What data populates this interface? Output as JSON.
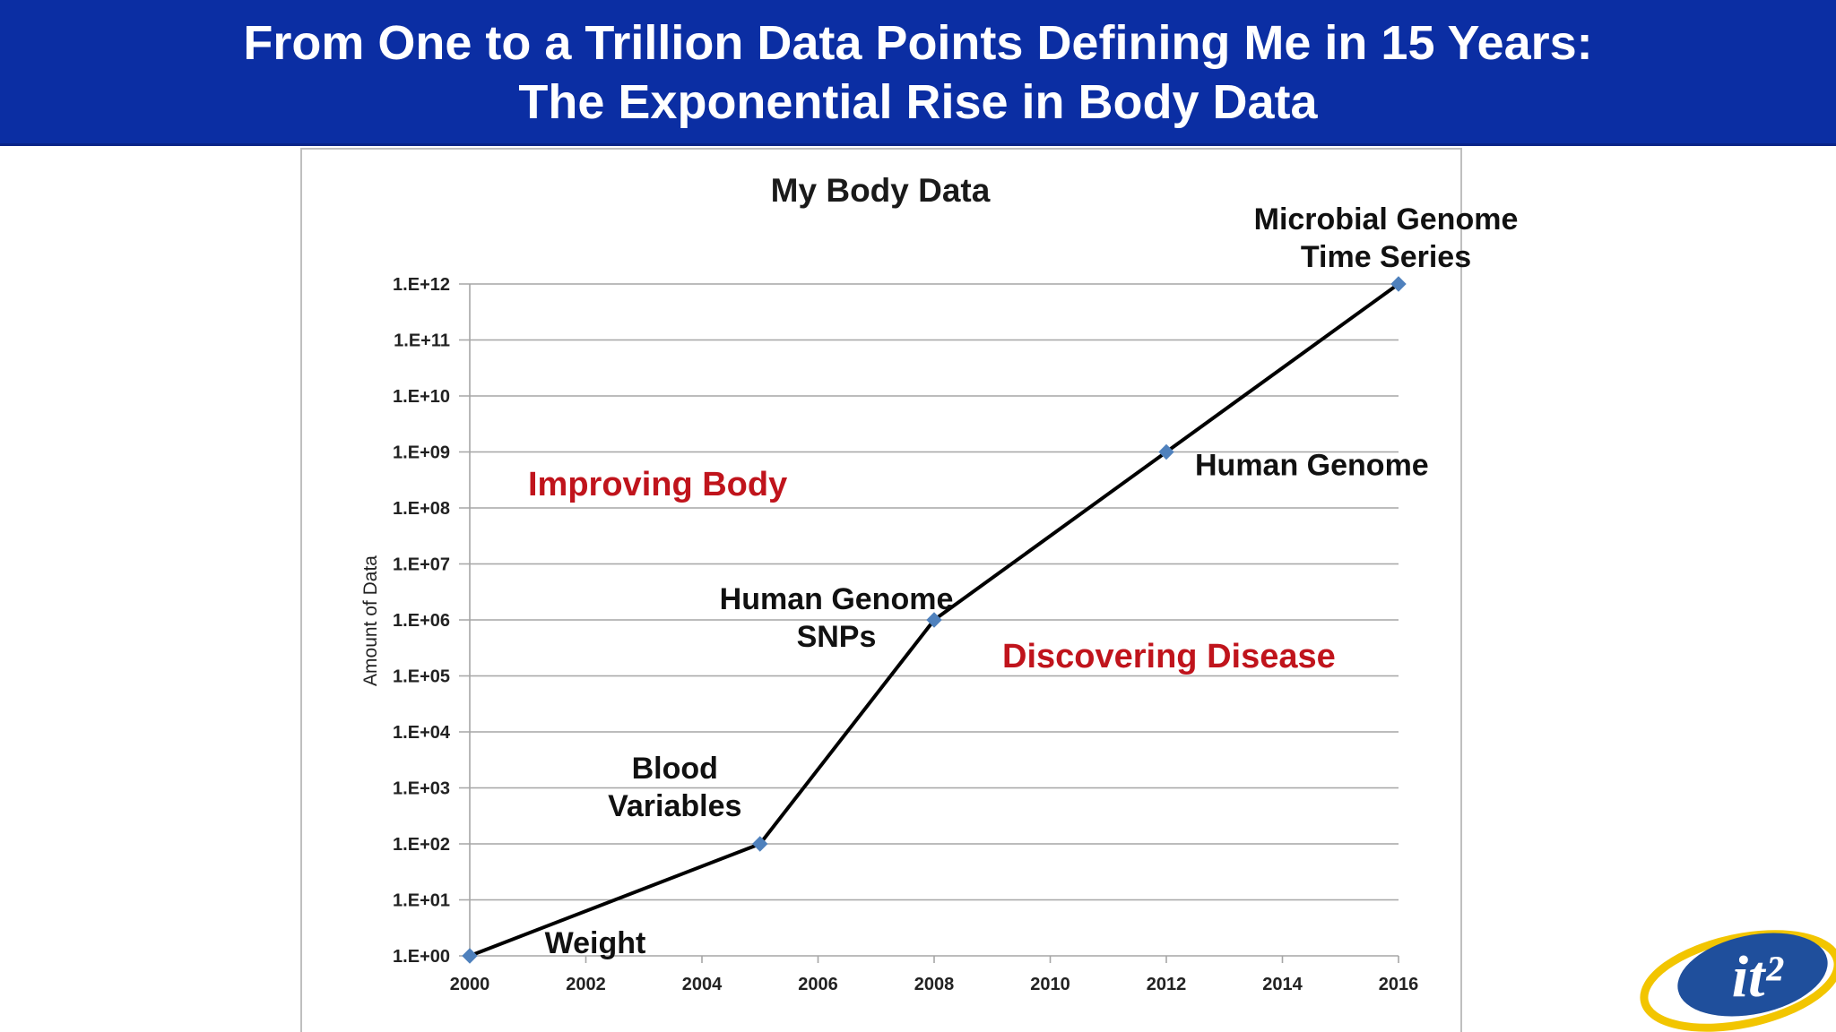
{
  "slide": {
    "title_line_1": "From One to a Trillion Data Points Defining Me in 15 Years:",
    "title_line_2": "The Exponential Rise in Body Data"
  },
  "colors": {
    "banner": "#0b2ea3",
    "line": "#000000",
    "marker": "#4f81bd",
    "gridline": "#a6a6a6",
    "red_annotation": "#c0141c"
  },
  "logo": {
    "text": "it²",
    "icon": "it2-logo"
  },
  "chart_data": {
    "type": "line",
    "title": "My Body Data",
    "xlabel": "",
    "ylabel": "Amount of Data",
    "yscale": "log",
    "xlim": [
      2000,
      2016
    ],
    "ylim": [
      1,
      1000000000000
    ],
    "grid": true,
    "legend": "none",
    "x_ticks": [
      "2000",
      "2002",
      "2004",
      "2006",
      "2008",
      "2010",
      "2012",
      "2014",
      "2016"
    ],
    "y_ticks": [
      "1.E+00",
      "1.E+01",
      "1.E+02",
      "1.E+03",
      "1.E+04",
      "1.E+05",
      "1.E+06",
      "1.E+07",
      "1.E+08",
      "1.E+09",
      "1.E+10",
      "1.E+11",
      "1.E+12"
    ],
    "series": [
      {
        "x": [
          2000,
          2005,
          2008,
          2012,
          2016
        ],
        "y": [
          1,
          100,
          1000000,
          1000000000,
          1000000000000
        ]
      }
    ],
    "point_labels": [
      {
        "text": [
          "Weight"
        ]
      },
      {
        "text": [
          "Blood",
          "Variables"
        ]
      },
      {
        "text": [
          "Human Genome",
          "SNPs"
        ]
      },
      {
        "text": [
          "Human Genome"
        ]
      },
      {
        "text": [
          "Microbial Genome",
          "Time Series"
        ]
      }
    ],
    "annotations": [
      {
        "text": "Improving Body",
        "color": "red"
      },
      {
        "text": "Discovering Disease",
        "color": "red"
      }
    ]
  }
}
